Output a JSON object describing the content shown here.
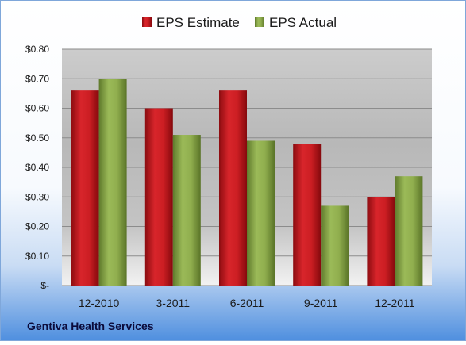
{
  "chart_data": {
    "type": "bar",
    "categories": [
      "12-2010",
      "3-2011",
      "6-2011",
      "9-2011",
      "12-2011"
    ],
    "series": [
      {
        "name": "EPS Estimate",
        "values": [
          0.66,
          0.6,
          0.66,
          0.48,
          0.3
        ],
        "color": "#c0161a"
      },
      {
        "name": "EPS Actual",
        "values": [
          0.7,
          0.51,
          0.49,
          0.27,
          0.37
        ],
        "color": "#8aa84a"
      }
    ],
    "y_ticks": [
      {
        "value": 0.0,
        "label": "$-"
      },
      {
        "value": 0.1,
        "label": "$0.10"
      },
      {
        "value": 0.2,
        "label": "$0.20"
      },
      {
        "value": 0.3,
        "label": "$0.30"
      },
      {
        "value": 0.4,
        "label": "$0.40"
      },
      {
        "value": 0.5,
        "label": "$0.50"
      },
      {
        "value": 0.6,
        "label": "$0.60"
      },
      {
        "value": 0.7,
        "label": "$0.70"
      },
      {
        "value": 0.8,
        "label": "$0.80"
      }
    ],
    "ylim": [
      0,
      0.8
    ],
    "grid": true,
    "legend_position": "top"
  },
  "footer": {
    "company": "Gentiva Health Services"
  }
}
